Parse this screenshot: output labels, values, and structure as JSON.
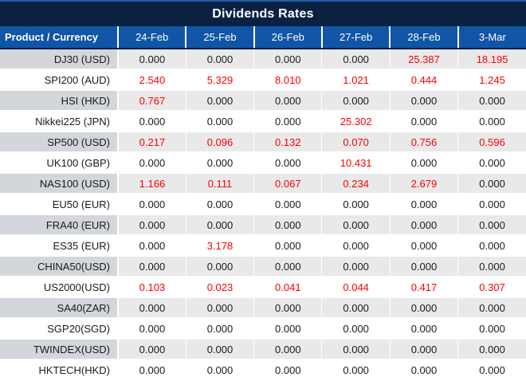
{
  "title": "Dividends Rates",
  "colors": {
    "title_bg": "#0B2142",
    "header_bg": "#1155A6",
    "alt_row_product_bg": "#D3D6DB",
    "alt_row_value_bg": "#E9E9E9",
    "nonzero_value_color": "#FB0007",
    "zero_value_color": "#1A1A1A"
  },
  "table": {
    "product_header": "Product / Currency",
    "date_headers": [
      "24-Feb",
      "25-Feb",
      "26-Feb",
      "27-Feb",
      "28-Feb",
      "3-Mar"
    ],
    "rows": [
      {
        "product": "DJ30 (USD)",
        "values": [
          "0.000",
          "0.000",
          "0.000",
          "0.000",
          "25.387",
          "18.195"
        ]
      },
      {
        "product": "SPI200 (AUD)",
        "values": [
          "2.540",
          "5.329",
          "8.010",
          "1.021",
          "0.444",
          "1.245"
        ]
      },
      {
        "product": "HSI (HKD)",
        "values": [
          "0.767",
          "0.000",
          "0.000",
          "0.000",
          "0.000",
          "0.000"
        ]
      },
      {
        "product": "Nikkei225 (JPN)",
        "values": [
          "0.000",
          "0.000",
          "0.000",
          "25.302",
          "0.000",
          "0.000"
        ]
      },
      {
        "product": "SP500 (USD)",
        "values": [
          "0.217",
          "0.096",
          "0.132",
          "0.070",
          "0.756",
          "0.596"
        ]
      },
      {
        "product": "UK100 (GBP)",
        "values": [
          "0.000",
          "0.000",
          "0.000",
          "10.431",
          "0.000",
          "0.000"
        ]
      },
      {
        "product": "NAS100 (USD)",
        "values": [
          "1.166",
          "0.111",
          "0.067",
          "0.234",
          "2.679",
          "0.000"
        ]
      },
      {
        "product": "EU50 (EUR)",
        "values": [
          "0.000",
          "0.000",
          "0.000",
          "0.000",
          "0.000",
          "0.000"
        ]
      },
      {
        "product": "FRA40 (EUR)",
        "values": [
          "0.000",
          "0.000",
          "0.000",
          "0.000",
          "0.000",
          "0.000"
        ]
      },
      {
        "product": "ES35 (EUR)",
        "values": [
          "0.000",
          "3.178",
          "0.000",
          "0.000",
          "0.000",
          "0.000"
        ]
      },
      {
        "product": "CHINA50(USD)",
        "values": [
          "0.000",
          "0.000",
          "0.000",
          "0.000",
          "0.000",
          "0.000"
        ]
      },
      {
        "product": "US2000(USD)",
        "values": [
          "0.103",
          "0.023",
          "0.041",
          "0.044",
          "0.417",
          "0.307"
        ]
      },
      {
        "product": "SA40(ZAR)",
        "values": [
          "0.000",
          "0.000",
          "0.000",
          "0.000",
          "0.000",
          "0.000"
        ]
      },
      {
        "product": "SGP20(SGD)",
        "values": [
          "0.000",
          "0.000",
          "0.000",
          "0.000",
          "0.000",
          "0.000"
        ]
      },
      {
        "product": "TWINDEX(USD)",
        "values": [
          "0.000",
          "0.000",
          "0.000",
          "0.000",
          "0.000",
          "0.000"
        ]
      },
      {
        "product": "HKTECH(HKD)",
        "values": [
          "0.000",
          "0.000",
          "0.000",
          "0.000",
          "0.000",
          "0.000"
        ]
      }
    ]
  }
}
